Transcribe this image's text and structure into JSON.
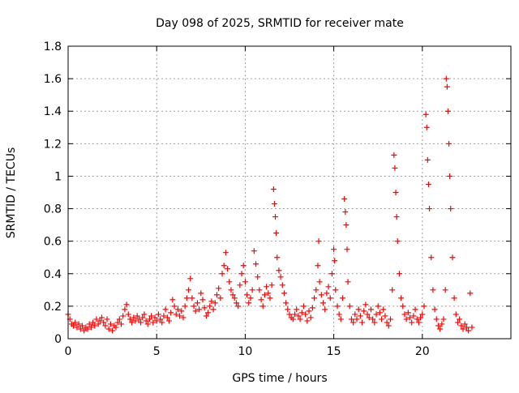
{
  "chart_data": {
    "type": "scatter",
    "title": "Day 098 of 2025, SRMTID for receiver mate",
    "xlabel": "GPS time / hours",
    "ylabel": "SRMTID / TECUs",
    "xlim": [
      0,
      25
    ],
    "ylim": [
      0,
      1.8
    ],
    "xticks": [
      0,
      5,
      10,
      15,
      20
    ],
    "xtick_labels": [
      "0",
      "5",
      "10",
      "15",
      "20"
    ],
    "yticks": [
      0,
      0.2,
      0.4,
      0.6,
      0.8,
      1,
      1.2,
      1.4,
      1.6,
      1.8
    ],
    "ytick_labels": [
      "0",
      "0.2",
      "0.4",
      "0.6",
      "0.8",
      "1",
      "1.2",
      "1.4",
      "1.6",
      "1.8"
    ],
    "grid": true,
    "marker": "+",
    "marker_color": "#ff0000",
    "series": [
      {
        "name": "SRMTID",
        "points": [
          [
            0.0,
            0.15
          ],
          [
            0.1,
            0.12
          ],
          [
            0.2,
            0.09
          ],
          [
            0.3,
            0.08
          ],
          [
            0.4,
            0.1
          ],
          [
            0.5,
            0.07
          ],
          [
            0.6,
            0.09
          ],
          [
            0.7,
            0.06
          ],
          [
            0.8,
            0.08
          ],
          [
            0.9,
            0.05
          ],
          [
            1.0,
            0.07
          ],
          [
            1.1,
            0.06
          ],
          [
            1.2,
            0.09
          ],
          [
            1.3,
            0.07
          ],
          [
            1.4,
            0.1
          ],
          [
            1.5,
            0.08
          ],
          [
            1.6,
            0.12
          ],
          [
            1.7,
            0.09
          ],
          [
            1.8,
            0.11
          ],
          [
            1.9,
            0.13
          ],
          [
            2.0,
            0.1
          ],
          [
            2.1,
            0.08
          ],
          [
            2.2,
            0.12
          ],
          [
            2.3,
            0.06
          ],
          [
            2.4,
            0.09
          ],
          [
            2.5,
            0.05
          ],
          [
            2.6,
            0.08
          ],
          [
            2.7,
            0.07
          ],
          [
            2.8,
            0.1
          ],
          [
            2.9,
            0.12
          ],
          [
            3.0,
            0.09
          ],
          [
            3.1,
            0.14
          ],
          [
            3.2,
            0.18
          ],
          [
            3.3,
            0.21
          ],
          [
            3.4,
            0.15
          ],
          [
            3.5,
            0.12
          ],
          [
            3.6,
            0.1
          ],
          [
            3.7,
            0.13
          ],
          [
            3.8,
            0.11
          ],
          [
            3.9,
            0.14
          ],
          [
            4.0,
            0.12
          ],
          [
            4.1,
            0.1
          ],
          [
            4.2,
            0.13
          ],
          [
            4.3,
            0.15
          ],
          [
            4.4,
            0.11
          ],
          [
            4.5,
            0.09
          ],
          [
            4.6,
            0.12
          ],
          [
            4.7,
            0.14
          ],
          [
            4.8,
            0.1
          ],
          [
            4.9,
            0.13
          ],
          [
            5.0,
            0.11
          ],
          [
            5.1,
            0.15
          ],
          [
            5.2,
            0.12
          ],
          [
            5.3,
            0.1
          ],
          [
            5.4,
            0.14
          ],
          [
            5.5,
            0.18
          ],
          [
            5.6,
            0.13
          ],
          [
            5.7,
            0.11
          ],
          [
            5.8,
            0.16
          ],
          [
            5.9,
            0.24
          ],
          [
            6.0,
            0.2
          ],
          [
            6.1,
            0.15
          ],
          [
            6.2,
            0.18
          ],
          [
            6.3,
            0.14
          ],
          [
            6.4,
            0.17
          ],
          [
            6.5,
            0.13
          ],
          [
            6.6,
            0.2
          ],
          [
            6.7,
            0.25
          ],
          [
            6.8,
            0.3
          ],
          [
            6.9,
            0.37
          ],
          [
            7.0,
            0.25
          ],
          [
            7.1,
            0.2
          ],
          [
            7.2,
            0.17
          ],
          [
            7.3,
            0.22
          ],
          [
            7.4,
            0.18
          ],
          [
            7.5,
            0.28
          ],
          [
            7.6,
            0.24
          ],
          [
            7.7,
            0.19
          ],
          [
            7.8,
            0.14
          ],
          [
            7.9,
            0.16
          ],
          [
            8.0,
            0.2
          ],
          [
            8.1,
            0.23
          ],
          [
            8.2,
            0.18
          ],
          [
            8.3,
            0.22
          ],
          [
            8.4,
            0.27
          ],
          [
            8.5,
            0.31
          ],
          [
            8.6,
            0.25
          ],
          [
            8.7,
            0.4
          ],
          [
            8.8,
            0.45
          ],
          [
            8.9,
            0.53
          ],
          [
            9.0,
            0.43
          ],
          [
            9.1,
            0.35
          ],
          [
            9.2,
            0.3
          ],
          [
            9.3,
            0.27
          ],
          [
            9.4,
            0.25
          ],
          [
            9.5,
            0.22
          ],
          [
            9.6,
            0.2
          ],
          [
            9.7,
            0.33
          ],
          [
            9.8,
            0.4
          ],
          [
            9.9,
            0.45
          ],
          [
            10.0,
            0.35
          ],
          [
            10.1,
            0.27
          ],
          [
            10.2,
            0.22
          ],
          [
            10.3,
            0.25
          ],
          [
            10.4,
            0.3
          ],
          [
            10.5,
            0.54
          ],
          [
            10.6,
            0.46
          ],
          [
            10.7,
            0.38
          ],
          [
            10.8,
            0.3
          ],
          [
            10.9,
            0.24
          ],
          [
            11.0,
            0.2
          ],
          [
            11.1,
            0.27
          ],
          [
            11.2,
            0.32
          ],
          [
            11.3,
            0.28
          ],
          [
            11.4,
            0.25
          ],
          [
            11.5,
            0.33
          ],
          [
            11.6,
            0.92
          ],
          [
            11.65,
            0.83
          ],
          [
            11.7,
            0.75
          ],
          [
            11.75,
            0.65
          ],
          [
            11.8,
            0.5
          ],
          [
            11.9,
            0.42
          ],
          [
            12.0,
            0.38
          ],
          [
            12.1,
            0.33
          ],
          [
            12.2,
            0.28
          ],
          [
            12.3,
            0.22
          ],
          [
            12.4,
            0.18
          ],
          [
            12.5,
            0.15
          ],
          [
            12.6,
            0.13
          ],
          [
            12.7,
            0.12
          ],
          [
            12.8,
            0.15
          ],
          [
            12.9,
            0.18
          ],
          [
            13.0,
            0.14
          ],
          [
            13.1,
            0.12
          ],
          [
            13.2,
            0.16
          ],
          [
            13.3,
            0.2
          ],
          [
            13.4,
            0.15
          ],
          [
            13.5,
            0.11
          ],
          [
            13.6,
            0.17
          ],
          [
            13.7,
            0.13
          ],
          [
            13.8,
            0.19
          ],
          [
            13.9,
            0.25
          ],
          [
            14.0,
            0.3
          ],
          [
            14.1,
            0.45
          ],
          [
            14.15,
            0.6
          ],
          [
            14.2,
            0.35
          ],
          [
            14.3,
            0.27
          ],
          [
            14.4,
            0.22
          ],
          [
            14.5,
            0.18
          ],
          [
            14.6,
            0.28
          ],
          [
            14.7,
            0.32
          ],
          [
            14.8,
            0.25
          ],
          [
            14.9,
            0.4
          ],
          [
            15.0,
            0.55
          ],
          [
            15.05,
            0.48
          ],
          [
            15.1,
            0.3
          ],
          [
            15.2,
            0.2
          ],
          [
            15.3,
            0.15
          ],
          [
            15.4,
            0.12
          ],
          [
            15.5,
            0.25
          ],
          [
            15.6,
            0.86
          ],
          [
            15.65,
            0.78
          ],
          [
            15.7,
            0.7
          ],
          [
            15.75,
            0.55
          ],
          [
            15.8,
            0.35
          ],
          [
            15.9,
            0.2
          ],
          [
            16.0,
            0.12
          ],
          [
            16.1,
            0.1
          ],
          [
            16.2,
            0.15
          ],
          [
            16.3,
            0.12
          ],
          [
            16.4,
            0.18
          ],
          [
            16.5,
            0.14
          ],
          [
            16.6,
            0.1
          ],
          [
            16.7,
            0.17
          ],
          [
            16.8,
            0.21
          ],
          [
            16.9,
            0.15
          ],
          [
            17.0,
            0.13
          ],
          [
            17.1,
            0.18
          ],
          [
            17.2,
            0.12
          ],
          [
            17.3,
            0.1
          ],
          [
            17.4,
            0.15
          ],
          [
            17.5,
            0.2
          ],
          [
            17.6,
            0.16
          ],
          [
            17.7,
            0.12
          ],
          [
            17.8,
            0.18
          ],
          [
            17.9,
            0.14
          ],
          [
            18.0,
            0.1
          ],
          [
            18.1,
            0.08
          ],
          [
            18.2,
            0.12
          ],
          [
            18.3,
            0.3
          ],
          [
            18.4,
            1.13
          ],
          [
            18.45,
            1.05
          ],
          [
            18.5,
            0.9
          ],
          [
            18.55,
            0.75
          ],
          [
            18.6,
            0.6
          ],
          [
            18.7,
            0.4
          ],
          [
            18.8,
            0.25
          ],
          [
            18.9,
            0.2
          ],
          [
            19.0,
            0.15
          ],
          [
            19.1,
            0.12
          ],
          [
            19.2,
            0.16
          ],
          [
            19.3,
            0.13
          ],
          [
            19.4,
            0.1
          ],
          [
            19.5,
            0.14
          ],
          [
            19.6,
            0.18
          ],
          [
            19.7,
            0.12
          ],
          [
            19.8,
            0.1
          ],
          [
            19.9,
            0.13
          ],
          [
            20.0,
            0.15
          ],
          [
            20.1,
            0.2
          ],
          [
            20.2,
            1.38
          ],
          [
            20.25,
            1.3
          ],
          [
            20.3,
            1.1
          ],
          [
            20.35,
            0.95
          ],
          [
            20.4,
            0.8
          ],
          [
            20.5,
            0.5
          ],
          [
            20.6,
            0.3
          ],
          [
            20.7,
            0.18
          ],
          [
            20.8,
            0.12
          ],
          [
            20.9,
            0.08
          ],
          [
            21.0,
            0.06
          ],
          [
            21.1,
            0.09
          ],
          [
            21.2,
            0.12
          ],
          [
            21.3,
            0.3
          ],
          [
            21.35,
            1.6
          ],
          [
            21.4,
            1.55
          ],
          [
            21.45,
            1.4
          ],
          [
            21.5,
            1.2
          ],
          [
            21.55,
            1.0
          ],
          [
            21.6,
            0.8
          ],
          [
            21.7,
            0.5
          ],
          [
            21.8,
            0.25
          ],
          [
            21.9,
            0.15
          ],
          [
            22.0,
            0.1
          ],
          [
            22.1,
            0.12
          ],
          [
            22.2,
            0.08
          ],
          [
            22.3,
            0.06
          ],
          [
            22.4,
            0.09
          ],
          [
            22.5,
            0.07
          ],
          [
            22.6,
            0.05
          ],
          [
            22.7,
            0.28
          ],
          [
            22.8,
            0.07
          ]
        ]
      }
    ]
  }
}
